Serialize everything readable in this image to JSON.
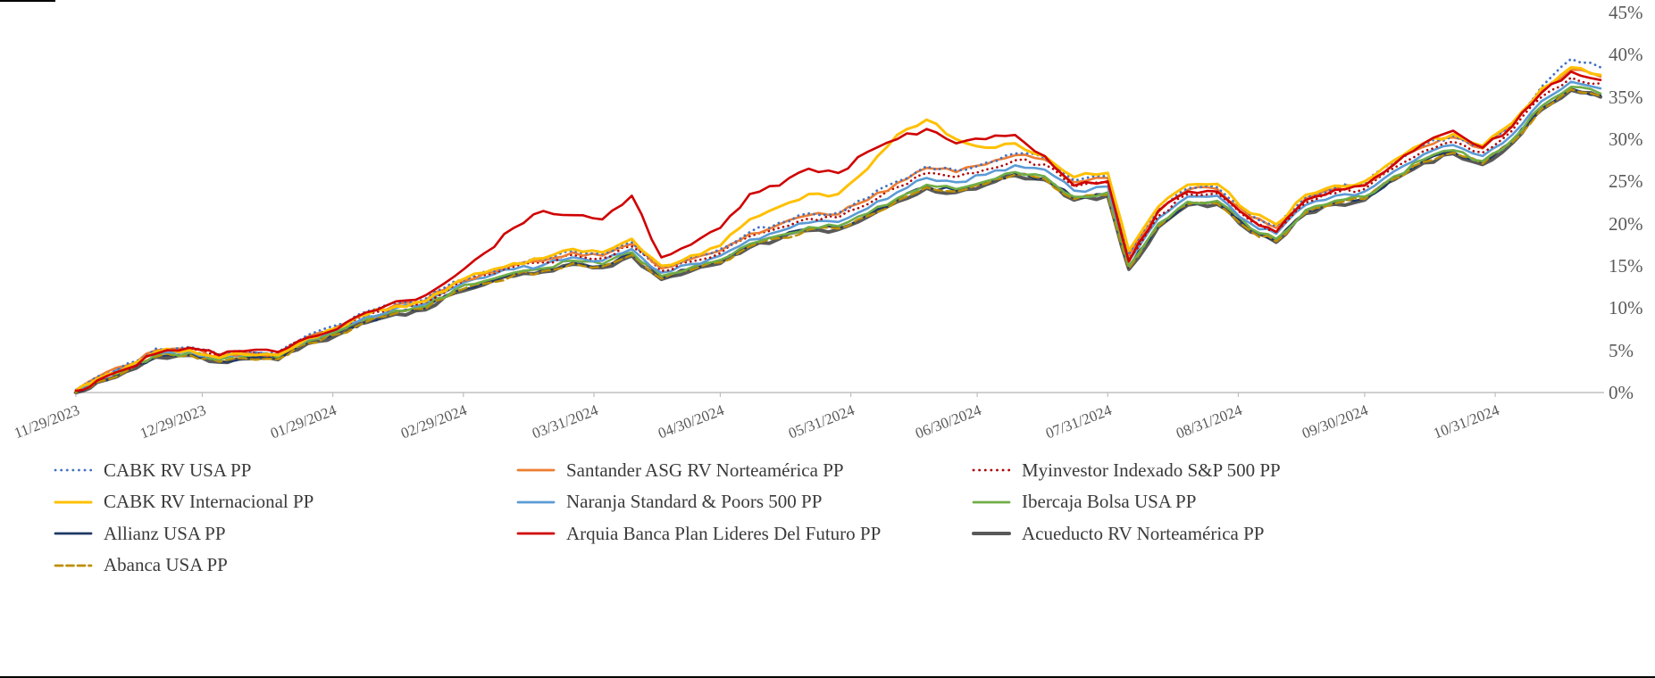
{
  "colors": {
    "axis_line": "#BFBFBF",
    "axis_text": "#595959",
    "legend_text": "#3B3B3B",
    "background": "#FFFFFF"
  },
  "chart_data": {
    "type": "line",
    "title": "",
    "grid": false,
    "legend_position": "bottom",
    "y_axis": {
      "min": 0,
      "max": 45,
      "step": 5,
      "unit": "%",
      "side": "right",
      "tick_labels": [
        "0%",
        "5%",
        "10%",
        "15%",
        "20%",
        "25%",
        "30%",
        "35%",
        "40%",
        "45%"
      ]
    },
    "x_tick_labels": [
      "11/29/2023",
      "12/29/2023",
      "01/29/2024",
      "02/29/2024",
      "03/31/2024",
      "04/30/2024",
      "05/31/2024",
      "06/30/2024",
      "07/31/2024",
      "08/31/2024",
      "09/30/2024",
      "10/31/2024"
    ],
    "x": [
      "11/29/2023",
      "12/04/2023",
      "12/11/2023",
      "12/18/2023",
      "12/26/2023",
      "01/02/2024",
      "01/08/2024",
      "01/16/2024",
      "01/23/2024",
      "01/30/2024",
      "02/06/2024",
      "02/13/2024",
      "02/20/2024",
      "02/27/2024",
      "03/05/2024",
      "03/12/2024",
      "03/19/2024",
      "03/26/2024",
      "04/02/2024",
      "04/09/2024",
      "04/16/2024",
      "04/23/2024",
      "04/30/2024",
      "05/07/2024",
      "05/14/2024",
      "05/21/2024",
      "05/28/2024",
      "06/04/2024",
      "06/11/2024",
      "06/18/2024",
      "06/25/2024",
      "07/02/2024",
      "07/09/2024",
      "07/16/2024",
      "07/23/2024",
      "07/31/2024",
      "08/05/2024",
      "08/12/2024",
      "08/19/2024",
      "08/26/2024",
      "09/03/2024",
      "09/09/2024",
      "09/16/2024",
      "09/23/2024",
      "09/30/2024",
      "10/07/2024",
      "10/14/2024",
      "10/21/2024",
      "10/28/2024",
      "11/04/2024",
      "11/11/2024",
      "11/18/2024",
      "11/25/2024"
    ],
    "draw_order": [
      8,
      6,
      9,
      5,
      4,
      2,
      1,
      0,
      3,
      7
    ],
    "series": [
      {
        "name": "CABK RV USA PP",
        "color": "#4472C4",
        "line_style": "dotted",
        "line_width": 2.8,
        "values": [
          0.3,
          1.9,
          3.4,
          5.2,
          5.4,
          4.5,
          4.9,
          4.8,
          6.8,
          8.0,
          9.6,
          10.6,
          11.1,
          13.2,
          14.3,
          15.3,
          15.8,
          16.8,
          16.4,
          17.8,
          14.9,
          16.0,
          17.0,
          19.0,
          20.1,
          21.2,
          21.3,
          23.0,
          25.0,
          26.8,
          26.3,
          27.2,
          28.3,
          27.8,
          25.1,
          25.6,
          16.4,
          21.6,
          24.2,
          24.3,
          21.0,
          19.7,
          23.2,
          24.3,
          24.8,
          27.3,
          29.3,
          30.4,
          29.1,
          31.8,
          36.2,
          39.5,
          38.5
        ]
      },
      {
        "name": "Santander ASG RV Norteamérica PP",
        "color": "#ED7D31",
        "line_style": "solid",
        "line_width": 2.6,
        "values": [
          0.3,
          1.8,
          3.2,
          5.0,
          5.2,
          4.3,
          4.7,
          4.6,
          6.6,
          7.8,
          9.4,
          10.4,
          10.9,
          13.0,
          14.1,
          15.1,
          15.6,
          16.6,
          16.2,
          17.6,
          14.7,
          15.8,
          16.8,
          18.8,
          19.9,
          21.0,
          21.1,
          22.8,
          24.8,
          26.6,
          26.1,
          27.0,
          28.1,
          27.6,
          24.9,
          25.4,
          16.2,
          21.4,
          24.0,
          24.1,
          20.8,
          19.5,
          23.0,
          24.1,
          24.6,
          27.1,
          29.1,
          30.2,
          28.9,
          31.5,
          35.7,
          38.2,
          37.4
        ]
      },
      {
        "name": "Myinvestor Indexado S&P 500 PP",
        "color": "#B00000",
        "line_style": "dotted",
        "line_width": 2.6,
        "values": [
          0.3,
          1.7,
          3.1,
          4.9,
          5.1,
          4.2,
          4.6,
          4.5,
          6.5,
          7.6,
          9.2,
          10.2,
          10.7,
          12.8,
          13.9,
          14.9,
          15.4,
          16.3,
          15.9,
          17.3,
          14.4,
          15.5,
          16.5,
          18.5,
          19.5,
          20.6,
          20.7,
          22.3,
          24.3,
          26.0,
          25.5,
          26.4,
          27.5,
          27.0,
          24.4,
          24.9,
          15.8,
          20.9,
          23.5,
          23.6,
          20.3,
          19.1,
          22.5,
          23.6,
          24.1,
          26.6,
          28.6,
          29.7,
          28.4,
          31.0,
          35.0,
          37.3,
          36.6
        ]
      },
      {
        "name": "CABK RV Internacional PP",
        "color": "#FFC000",
        "line_style": "solid",
        "line_width": 3,
        "values": [
          0.2,
          1.6,
          3.0,
          4.8,
          5.0,
          4.1,
          4.5,
          4.4,
          6.4,
          7.6,
          9.2,
          10.2,
          10.8,
          13.0,
          14.2,
          15.3,
          15.9,
          17.0,
          16.6,
          18.2,
          15.0,
          16.2,
          17.4,
          20.5,
          22.0,
          23.5,
          23.5,
          26.5,
          30.5,
          32.3,
          30.0,
          29.0,
          29.5,
          28.0,
          25.5,
          26.0,
          16.8,
          22.0,
          24.6,
          24.7,
          21.2,
          19.9,
          23.4,
          24.5,
          25.0,
          27.5,
          29.5,
          30.6,
          29.2,
          31.9,
          36.0,
          38.5,
          37.6
        ]
      },
      {
        "name": "Naranja Standard & Poors 500 PP",
        "color": "#5B9BD5",
        "line_style": "solid",
        "line_width": 2.6,
        "values": [
          0.2,
          1.6,
          3.0,
          4.7,
          4.9,
          4.1,
          4.5,
          4.4,
          6.3,
          7.5,
          9.0,
          10.0,
          10.5,
          12.5,
          13.6,
          14.6,
          15.1,
          16.0,
          15.6,
          17.0,
          14.2,
          15.2,
          16.2,
          18.1,
          19.1,
          20.1,
          20.2,
          21.8,
          23.7,
          25.4,
          24.9,
          25.8,
          26.9,
          26.4,
          23.9,
          24.4,
          15.6,
          20.6,
          23.2,
          23.3,
          20.0,
          18.8,
          22.2,
          23.3,
          23.8,
          26.2,
          28.2,
          29.3,
          28.0,
          30.5,
          34.5,
          36.8,
          36.0
        ]
      },
      {
        "name": "Ibercaja Bolsa USA PP",
        "color": "#70AD47",
        "line_style": "solid",
        "line_width": 2.6,
        "values": [
          0.2,
          1.5,
          2.8,
          4.5,
          4.7,
          3.9,
          4.3,
          4.2,
          6.1,
          7.2,
          8.7,
          9.7,
          10.2,
          12.2,
          13.2,
          14.2,
          14.7,
          15.6,
          15.2,
          16.6,
          13.8,
          14.8,
          15.7,
          17.6,
          18.6,
          19.6,
          19.7,
          21.2,
          23.0,
          24.6,
          24.1,
          25.0,
          26.1,
          25.6,
          23.2,
          23.7,
          15.0,
          20.0,
          22.6,
          22.7,
          19.4,
          18.2,
          21.6,
          22.7,
          23.2,
          25.6,
          27.6,
          28.7,
          27.4,
          29.9,
          33.9,
          36.2,
          35.4
        ]
      },
      {
        "name": "Allianz USA PP",
        "color": "#1F3864",
        "line_style": "solid",
        "line_width": 2.2,
        "values": [
          0.1,
          1.3,
          2.6,
          4.3,
          4.5,
          3.7,
          4.1,
          4.0,
          5.9,
          7.0,
          8.5,
          9.5,
          10.0,
          12.0,
          13.0,
          14.0,
          14.5,
          15.4,
          15.0,
          16.4,
          13.6,
          14.6,
          15.5,
          17.4,
          18.4,
          19.4,
          19.5,
          21.0,
          22.8,
          24.4,
          23.9,
          24.8,
          25.9,
          25.4,
          23.0,
          23.5,
          14.8,
          19.8,
          22.4,
          22.5,
          19.2,
          18.0,
          21.4,
          22.5,
          23.0,
          25.4,
          27.4,
          28.5,
          27.2,
          29.7,
          33.7,
          36.0,
          35.2
        ]
      },
      {
        "name": "Arquia Banca Plan Lideres Del Futuro PP",
        "color": "#D00000",
        "line_style": "solid",
        "line_width": 2.6,
        "values": [
          0.2,
          1.4,
          2.8,
          4.6,
          5.3,
          4.4,
          4.9,
          4.8,
          6.5,
          7.5,
          9.5,
          10.8,
          11.5,
          13.8,
          16.5,
          19.5,
          21.5,
          21.0,
          20.5,
          23.3,
          16.0,
          17.5,
          19.5,
          23.5,
          24.5,
          26.5,
          26.0,
          28.5,
          30.0,
          31.2,
          29.5,
          30.0,
          30.5,
          28.0,
          24.5,
          25.0,
          15.5,
          21.5,
          23.8,
          23.8,
          20.5,
          19.0,
          22.8,
          24.0,
          24.5,
          27.0,
          29.5,
          31.0,
          29.0,
          31.5,
          35.5,
          38.0,
          37.0
        ]
      },
      {
        "name": "Acueducto RV Norteamérica PP",
        "color": "#595959",
        "line_style": "solid",
        "line_width": 4,
        "values": [
          0.0,
          1.2,
          2.5,
          4.2,
          4.4,
          3.6,
          4.0,
          3.9,
          5.8,
          6.8,
          8.3,
          9.3,
          9.8,
          11.8,
          12.8,
          13.8,
          14.3,
          15.2,
          14.8,
          16.2,
          13.4,
          14.4,
          15.3,
          17.2,
          18.2,
          19.2,
          19.3,
          20.8,
          22.6,
          24.2,
          23.7,
          24.6,
          25.7,
          25.2,
          22.8,
          23.3,
          14.6,
          19.6,
          22.2,
          22.3,
          19.0,
          17.8,
          21.2,
          22.3,
          22.8,
          25.2,
          27.2,
          28.3,
          27.0,
          29.5,
          33.5,
          35.8,
          35.0
        ]
      },
      {
        "name": "Abanca USA PP",
        "color": "#BF8F00",
        "line_style": "dashed",
        "line_width": 2.4,
        "values": [
          0.0,
          1.25,
          2.55,
          4.25,
          4.45,
          3.65,
          4.05,
          3.95,
          5.85,
          6.9,
          8.4,
          9.4,
          9.9,
          11.9,
          12.9,
          13.9,
          14.4,
          15.3,
          14.9,
          16.3,
          13.5,
          14.5,
          15.4,
          17.3,
          18.3,
          19.3,
          19.4,
          20.9,
          22.7,
          24.3,
          23.8,
          24.7,
          25.8,
          25.3,
          22.9,
          23.4,
          14.7,
          19.7,
          22.3,
          22.4,
          19.1,
          17.9,
          21.3,
          22.4,
          22.9,
          25.3,
          27.3,
          28.4,
          27.1,
          29.6,
          33.6,
          35.9,
          35.1
        ]
      }
    ]
  }
}
